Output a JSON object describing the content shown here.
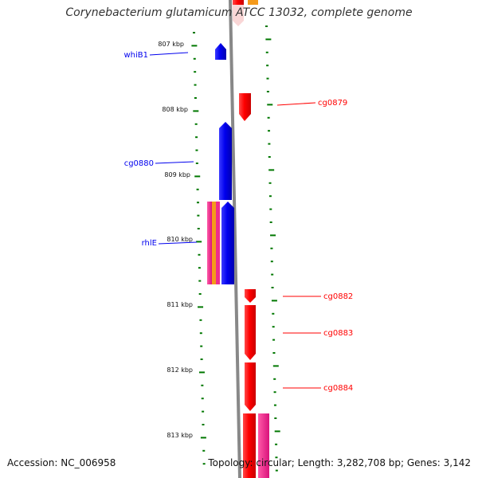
{
  "title": "Corynebacterium glutamicum ATCC 13032, complete genome",
  "footer": {
    "accession": "Accession: NC_006958",
    "summary": "Topology: circular; Length: 3,282,708 bp; Genes: 3,142"
  },
  "ruler": {
    "ticks": [
      {
        "kbp": 807,
        "label": "807 kbp"
      },
      {
        "kbp": 808,
        "label": "808 kbp"
      },
      {
        "kbp": 809,
        "label": "809 kbp"
      },
      {
        "kbp": 810,
        "label": "810 kbp"
      },
      {
        "kbp": 811,
        "label": "811 kbp"
      },
      {
        "kbp": 812,
        "label": "812 kbp"
      },
      {
        "kbp": 813,
        "label": "813 kbp"
      }
    ]
  },
  "genes": [
    {
      "name": "whiB1",
      "strand": "reverse",
      "color": "#0000ee",
      "labeled": true
    },
    {
      "name": "cg0879",
      "strand": "forward",
      "color": "#ff0000",
      "labeled": true
    },
    {
      "name": "cg0880",
      "strand": "reverse",
      "color": "#0000ee",
      "labeled": true
    },
    {
      "name": "rhlE",
      "strand": "reverse",
      "color": "#0000ee",
      "labeled": true
    },
    {
      "name": "cg0882",
      "strand": "forward",
      "color": "#ff0000",
      "labeled": true
    },
    {
      "name": "cg0883",
      "strand": "forward",
      "color": "#ff0000",
      "labeled": true
    },
    {
      "name": "cg0884",
      "strand": "forward",
      "color": "#ff0000",
      "labeled": true
    }
  ],
  "colors": {
    "forward": "#ff0000",
    "reverse": "#0000ee",
    "tick": "#007700",
    "backbone": "#888888",
    "feature_pink": "#ee2d8c",
    "feature_orange": "#f59a1a"
  }
}
